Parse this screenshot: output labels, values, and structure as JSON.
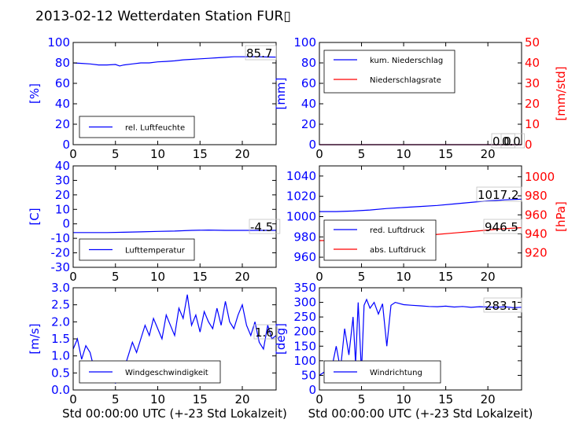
{
  "figure": {
    "title": "2013-02-12 Wetterdaten Station FUR▯",
    "colors": {
      "primary": "#0000ff",
      "secondary": "#ff0000",
      "axis": "#000000"
    }
  },
  "chart_data": [
    {
      "id": "humidity",
      "type": "line",
      "xlim": [
        0,
        24
      ],
      "ylim": [
        0,
        100
      ],
      "xticks": [
        0,
        5,
        10,
        15,
        20
      ],
      "yticks": [
        0,
        20,
        40,
        60,
        80,
        100
      ],
      "ylabel": "[%]",
      "legend": {
        "position": "lower-left",
        "entries": [
          "rel. Luftfeuchte"
        ]
      },
      "annotation": "85.7",
      "series": [
        {
          "name": "rel. Luftfeuchte",
          "color": "#0000ff",
          "x": [
            0,
            1,
            2,
            3,
            4,
            5,
            5.5,
            6,
            7,
            8,
            9,
            10,
            11,
            12,
            13,
            14,
            15,
            16,
            17,
            18,
            19,
            20,
            21,
            22,
            23,
            24
          ],
          "y": [
            80,
            79.5,
            79,
            78,
            78,
            78.5,
            77,
            78,
            79,
            80,
            80,
            81,
            81.5,
            82,
            83,
            83.5,
            84,
            84.5,
            85,
            85.5,
            86,
            86,
            86,
            86,
            85.8,
            85.7
          ]
        }
      ]
    },
    {
      "id": "precipitation",
      "type": "line",
      "xlim": [
        0,
        24
      ],
      "ylim": [
        0,
        100
      ],
      "y2lim": [
        0,
        50
      ],
      "xticks": [
        0,
        5,
        10,
        15,
        20
      ],
      "yticks": [
        0,
        20,
        40,
        60,
        80,
        100
      ],
      "y2ticks": [
        0,
        10,
        20,
        30,
        40,
        50
      ],
      "ylabel": "[mm]",
      "y2label": "[mm/std]",
      "legend": {
        "position": "upper-left",
        "entries": [
          "kum. Niederschlag",
          "Niederschlagsrate"
        ]
      },
      "annotations": [
        "0.0",
        "0.0"
      ],
      "series": [
        {
          "name": "kum. Niederschlag",
          "color": "#0000ff",
          "axis": "left",
          "x": [
            0,
            24
          ],
          "y": [
            0,
            0
          ]
        },
        {
          "name": "Niederschlagsrate",
          "color": "#ff0000",
          "axis": "right",
          "x": [
            0,
            24
          ],
          "y": [
            0,
            0
          ]
        }
      ]
    },
    {
      "id": "temperature",
      "type": "line",
      "xlim": [
        0,
        24
      ],
      "ylim": [
        -30,
        40
      ],
      "xticks": [
        0,
        5,
        10,
        15,
        20
      ],
      "yticks": [
        -30,
        -20,
        -10,
        0,
        10,
        20,
        30,
        40
      ],
      "ylabel": "[C]",
      "legend": {
        "position": "lower-left",
        "entries": [
          "Lufttemperatur"
        ]
      },
      "annotation": "-4.5",
      "series": [
        {
          "name": "Lufttemperatur",
          "color": "#0000ff",
          "x": [
            0,
            2,
            4,
            6,
            8,
            10,
            12,
            14,
            16,
            18,
            20,
            22,
            24
          ],
          "y": [
            -6,
            -6,
            -6,
            -5.8,
            -5.5,
            -5.2,
            -5,
            -4.5,
            -4.3,
            -4.5,
            -4.5,
            -4.5,
            -4.5
          ]
        }
      ]
    },
    {
      "id": "pressure",
      "type": "line",
      "xlim": [
        0,
        24
      ],
      "ylim": [
        950,
        1050
      ],
      "y2lim": [
        904.9,
        1011.4
      ],
      "xticks": [
        0,
        5,
        10,
        15,
        20
      ],
      "yticks": [
        960,
        980,
        1000,
        1020,
        1040
      ],
      "y2ticks": [
        920,
        940,
        960,
        980,
        1000
      ],
      "y2label": "[hPa]",
      "legend": {
        "position": "lower-left",
        "entries": [
          "red. Luftdruck",
          "abs. Luftdruck"
        ]
      },
      "annotations": [
        "1017.2",
        "946.5"
      ],
      "series": [
        {
          "name": "red. Luftdruck",
          "color": "#0000ff",
          "axis": "left",
          "x": [
            0,
            2,
            4,
            6,
            8,
            10,
            12,
            14,
            16,
            18,
            20,
            22,
            24
          ],
          "y": [
            1005,
            1005,
            1005.5,
            1006.5,
            1008,
            1009,
            1010,
            1011,
            1012.5,
            1014,
            1015.5,
            1016.5,
            1017.2
          ]
        },
        {
          "name": "abs. Luftdruck",
          "color": "#ff0000",
          "axis": "right",
          "x": [
            0,
            2,
            4,
            6,
            8,
            10,
            12,
            14,
            16,
            18,
            20,
            22,
            24
          ],
          "y": [
            933,
            933.2,
            933.6,
            934.8,
            936.2,
            937.3,
            938.3,
            939.5,
            941,
            942.5,
            944,
            945.5,
            946.5
          ]
        }
      ]
    },
    {
      "id": "windspeed",
      "type": "line",
      "xlim": [
        0,
        24
      ],
      "ylim": [
        0,
        3.0
      ],
      "xticks": [
        0,
        5,
        10,
        15,
        20
      ],
      "yticks": [
        0.0,
        0.5,
        1.0,
        1.5,
        2.0,
        2.5,
        3.0
      ],
      "ylabel": "[m/s]",
      "xlabel": "Std 00:00:00 UTC (+-23 Std Lokalzeit)",
      "legend": {
        "position": "lower-left",
        "entries": [
          "Windgeschwindigkeit"
        ]
      },
      "annotation": "1.6",
      "series": [
        {
          "name": "Windgeschwindigkeit",
          "color": "#0000ff",
          "x": [
            0,
            0.5,
            1,
            1.5,
            2,
            2.5,
            3,
            3.5,
            4,
            4.5,
            5,
            5.5,
            6,
            6.5,
            7,
            7.5,
            8,
            8.5,
            9,
            9.5,
            10,
            10.5,
            11,
            11.5,
            12,
            12.5,
            13,
            13.5,
            14,
            14.5,
            15,
            15.5,
            16,
            16.5,
            17,
            17.5,
            18,
            18.5,
            19,
            19.5,
            20,
            20.5,
            21,
            21.5,
            22,
            22.5,
            23,
            23.5,
            24
          ],
          "y": [
            1.2,
            1.5,
            0.9,
            1.3,
            1.1,
            0.6,
            0.8,
            0.4,
            0.5,
            0.3,
            0.2,
            0.4,
            0.6,
            1.0,
            1.4,
            1.1,
            1.5,
            1.9,
            1.6,
            2.1,
            1.8,
            1.5,
            2.2,
            1.9,
            1.6,
            2.4,
            2.1,
            2.8,
            1.9,
            2.2,
            1.7,
            2.3,
            2.0,
            1.8,
            2.4,
            1.9,
            2.6,
            2.0,
            1.8,
            2.2,
            2.5,
            1.9,
            1.6,
            2.0,
            1.4,
            1.2,
            1.9,
            1.5,
            1.6
          ]
        }
      ]
    },
    {
      "id": "winddirection",
      "type": "line",
      "xlim": [
        0,
        24
      ],
      "ylim": [
        0,
        350
      ],
      "xticks": [
        0,
        5,
        10,
        15,
        20
      ],
      "yticks": [
        0,
        50,
        100,
        150,
        200,
        250,
        300,
        350
      ],
      "ylabel": "[deg]",
      "xlabel": "Std 00:00:00 UTC (+-23 Std Lokalzeit)",
      "legend": {
        "position": "lower-left",
        "entries": [
          "Windrichtung"
        ]
      },
      "annotation": "283.1",
      "series": [
        {
          "name": "Windrichtung",
          "color": "#0000ff",
          "x": [
            0,
            0.5,
            1,
            1.5,
            2,
            2.5,
            3,
            3.5,
            4,
            4.3,
            4.6,
            5,
            5.3,
            5.6,
            6,
            6.5,
            7,
            7.5,
            8,
            8.5,
            9,
            10,
            11,
            12,
            13,
            14,
            15,
            16,
            17,
            18,
            19,
            20,
            21,
            22,
            23,
            24
          ],
          "y": [
            50,
            60,
            45,
            80,
            150,
            70,
            210,
            120,
            250,
            90,
            300,
            60,
            290,
            310,
            280,
            300,
            260,
            295,
            150,
            290,
            300,
            292,
            290,
            288,
            286,
            285,
            287,
            284,
            286,
            283,
            285,
            284,
            283,
            285,
            282,
            283.1
          ]
        }
      ]
    }
  ]
}
